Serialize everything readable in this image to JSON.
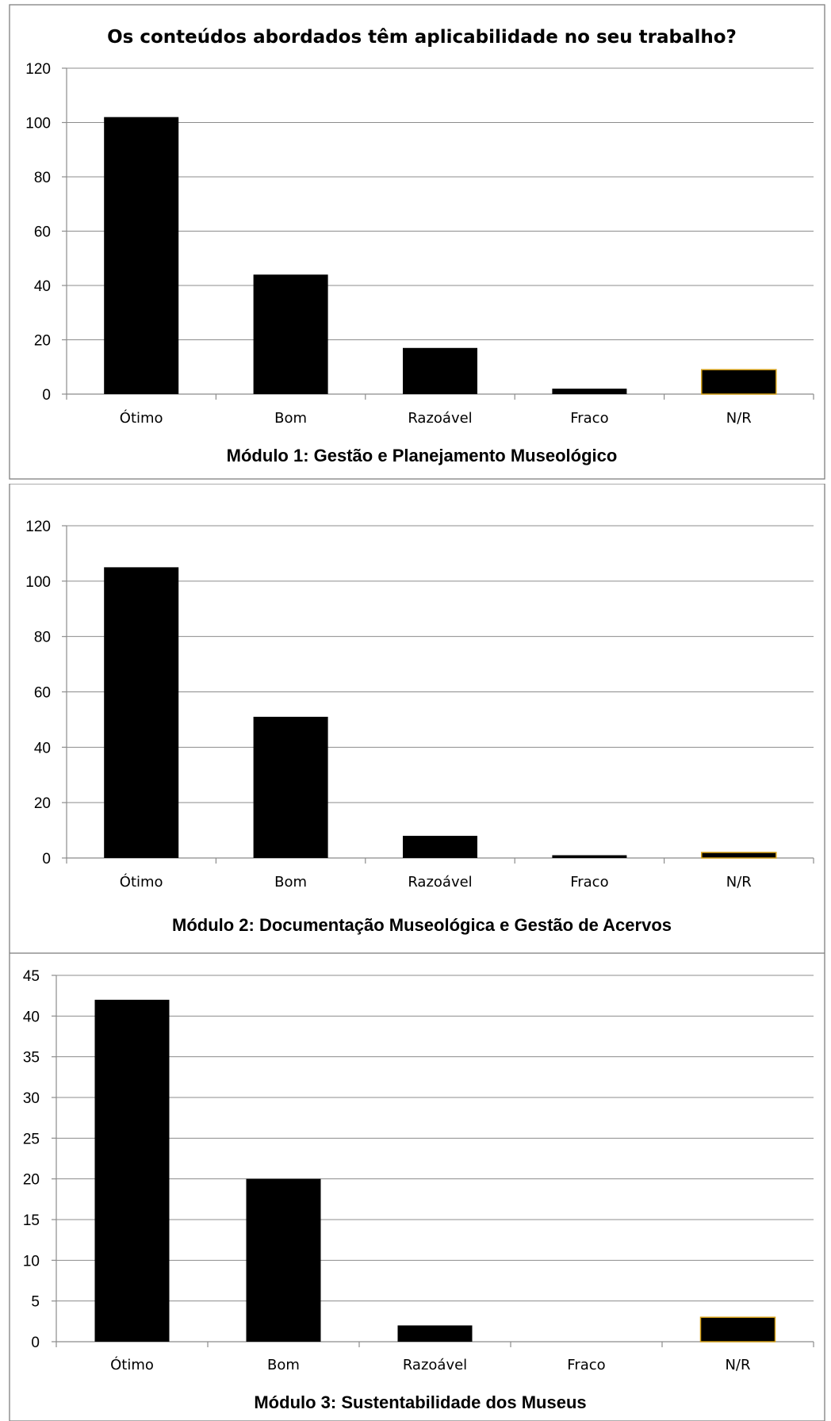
{
  "chart_data": [
    {
      "type": "bar",
      "title": "Os conteúdos abordados têm aplicabilidade no seu trabalho?",
      "xlabel": "Módulo 1: Gestão e Planejamento Museológico",
      "ylabel": "",
      "categories": [
        "Ótimo",
        "Bom",
        "Razoável",
        "Fraco",
        "N/R"
      ],
      "values": [
        102,
        44,
        17,
        2,
        9
      ],
      "ylim": [
        0,
        120
      ],
      "yticks": [
        "0",
        "20",
        "40",
        "60",
        "80",
        "100",
        "120"
      ],
      "grid": true,
      "bar_color": "#000000",
      "highlight_color": "#d4a017"
    },
    {
      "type": "bar",
      "title": "",
      "xlabel": "Módulo 2: Documentação Museológica e Gestão de Acervos",
      "ylabel": "",
      "categories": [
        "Ótimo",
        "Bom",
        "Razoável",
        "Fraco",
        "N/R"
      ],
      "values": [
        105,
        51,
        8,
        1,
        2
      ],
      "ylim": [
        0,
        120
      ],
      "yticks": [
        "0",
        "20",
        "40",
        "60",
        "80",
        "100",
        "120"
      ],
      "grid": true,
      "bar_color": "#000000",
      "highlight_color": "#d4a017"
    },
    {
      "type": "bar",
      "title": "",
      "xlabel": "Módulo 3: Sustentabilidade dos Museus",
      "ylabel": "",
      "categories": [
        "Ótimo",
        "Bom",
        "Razoável",
        "Fraco",
        "N/R"
      ],
      "values": [
        42,
        20,
        2,
        0,
        3
      ],
      "ylim": [
        0,
        45
      ],
      "yticks": [
        "0",
        "5",
        "10",
        "15",
        "20",
        "25",
        "30",
        "35",
        "40",
        "45"
      ],
      "grid": true,
      "bar_color": "#000000",
      "highlight_color": "#d4a017"
    }
  ]
}
